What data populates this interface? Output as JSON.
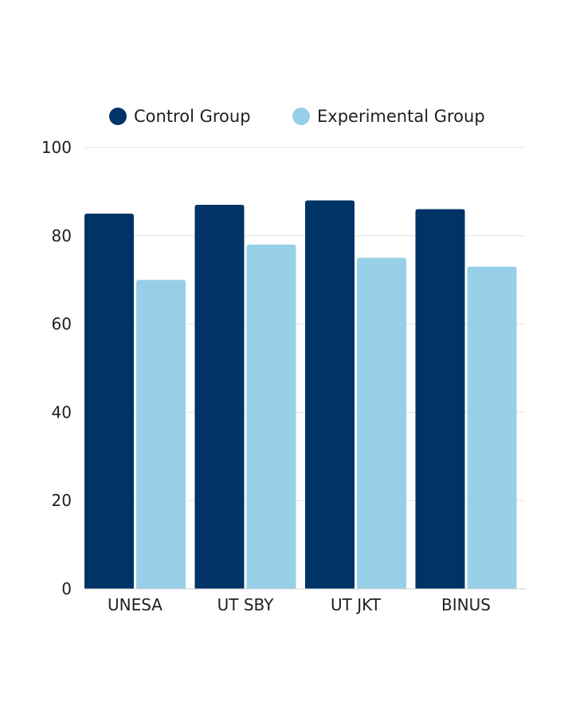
{
  "chart_data": {
    "type": "bar",
    "title": "",
    "xlabel": "",
    "ylabel": "",
    "categories": [
      "UNESA",
      "UT SBY",
      "UT JKT",
      "BINUS"
    ],
    "series": [
      {
        "name": "Control Group",
        "color": "#003366",
        "values": [
          85,
          87,
          88,
          86
        ]
      },
      {
        "name": "Experimental Group",
        "color": "#98cfe8",
        "values": [
          70,
          78,
          75,
          73
        ]
      }
    ],
    "ylim": [
      0,
      100
    ],
    "yticks": [
      0,
      20,
      40,
      60,
      80,
      100
    ],
    "grid": true,
    "legend_position": "top"
  }
}
